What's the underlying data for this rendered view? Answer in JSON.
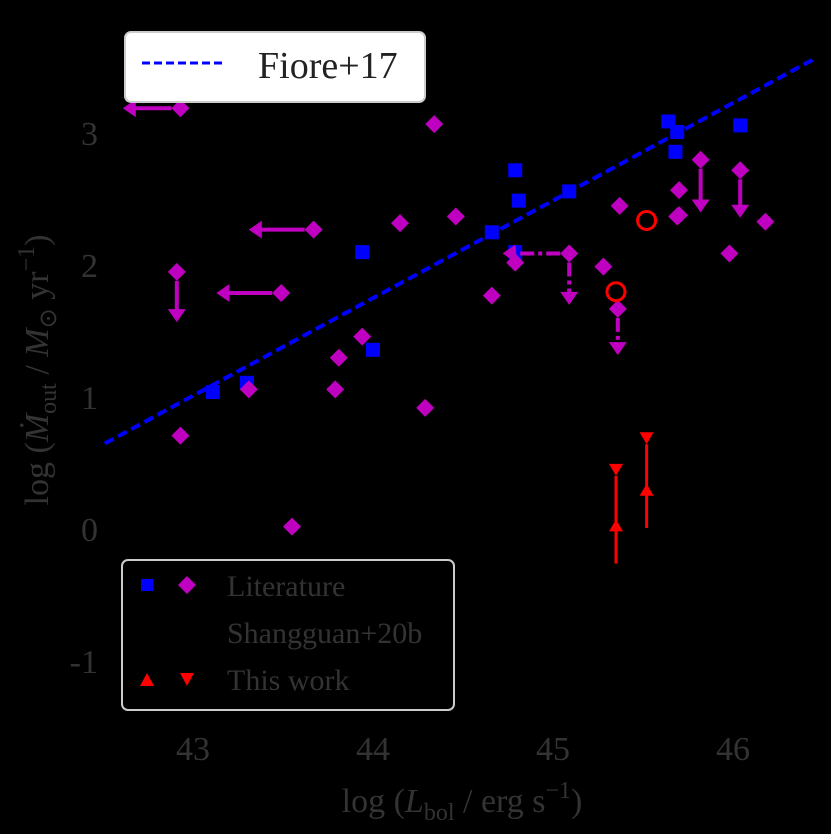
{
  "chart_data": {
    "type": "scatter",
    "title": "",
    "xlabel": "log (L_bol / erg s^-1)",
    "ylabel": "log (Ṁ_out / M_⊙ yr^-1)",
    "xlim": [
      42.4,
      46.55
    ],
    "ylim": [
      -1.4,
      3.6
    ],
    "x_ticks": [
      43,
      44,
      45,
      46
    ],
    "y_ticks": [
      -1,
      0,
      1,
      2,
      3
    ],
    "y_tick_labels": [
      "-1",
      "0",
      "1",
      "2",
      "3"
    ],
    "grid": false,
    "legends": [
      {
        "position": "upper left",
        "entries": [
          "Fiore+17"
        ]
      },
      {
        "position": "lower left",
        "entries": [
          "Literature",
          "Shangguan+20b",
          "This work"
        ]
      }
    ],
    "series": [
      {
        "name": "Fiore+17",
        "kind": "line",
        "style": "dashed",
        "color": "#0000ff",
        "points": [
          [
            42.51,
            0.64
          ],
          [
            46.46,
            3.56
          ]
        ]
      },
      {
        "name": "Literature (squares)",
        "kind": "scatter",
        "marker": "square",
        "color": "#0000ff",
        "points": [
          [
            43.11,
            1.03
          ],
          [
            43.3,
            1.1
          ],
          [
            43.94,
            2.09
          ],
          [
            44.0,
            1.35
          ],
          [
            44.66,
            2.24
          ],
          [
            44.79,
            2.71
          ],
          [
            44.81,
            2.48
          ],
          [
            44.79,
            2.09
          ],
          [
            45.09,
            2.55
          ],
          [
            45.64,
            3.08
          ],
          [
            45.69,
            3.0
          ],
          [
            45.68,
            2.85
          ],
          [
            46.04,
            3.05
          ]
        ]
      },
      {
        "name": "Literature (diamonds)",
        "kind": "scatter",
        "marker": "diamond",
        "color": "#c000c0",
        "points": [
          {
            "x": 42.93,
            "y": 3.18,
            "limit": "upper_x",
            "arrow_to_x": 42.61
          },
          {
            "x": 43.67,
            "y": 2.26,
            "limit": "upper_x",
            "arrow_to_x": 43.31
          },
          {
            "x": 43.49,
            "y": 1.78,
            "limit": "upper_x",
            "arrow_to_x": 43.13
          },
          {
            "x": 42.91,
            "y": 1.94,
            "limit": "upper_y",
            "arrow_to_y": 1.56
          },
          {
            "x": 42.93,
            "y": 0.7
          },
          {
            "x": 43.31,
            "y": 1.05
          },
          {
            "x": 43.79,
            "y": 1.05
          },
          {
            "x": 43.81,
            "y": 1.29
          },
          {
            "x": 43.94,
            "y": 1.45
          },
          {
            "x": 43.55,
            "y": 0.01
          },
          {
            "x": 44.15,
            "y": 2.31
          },
          {
            "x": 44.29,
            "y": 0.91
          },
          {
            "x": 44.34,
            "y": 3.06
          },
          {
            "x": 44.46,
            "y": 2.36
          },
          {
            "x": 44.79,
            "y": 2.01
          },
          {
            "x": 44.66,
            "y": 1.76
          },
          {
            "x": 45.09,
            "y": 2.08,
            "limit": "upper_xy_dashed",
            "arrow_to_x": 44.72,
            "arrow_to_y": 1.69
          },
          {
            "x": 45.28,
            "y": 1.98
          },
          {
            "x": 45.37,
            "y": 2.44
          },
          {
            "x": 45.36,
            "y": 1.66,
            "limit": "upper_y_dashed",
            "arrow_to_y": 1.31
          },
          {
            "x": 45.7,
            "y": 2.56
          },
          {
            "x": 45.7,
            "y": 2.37
          },
          {
            "x": 45.69,
            "y": 2.36
          },
          {
            "x": 45.82,
            "y": 2.79,
            "limit": "upper_y",
            "arrow_to_y": 2.39
          },
          {
            "x": 46.04,
            "y": 2.71,
            "limit": "upper_y",
            "arrow_to_y": 2.35
          },
          {
            "x": 46.18,
            "y": 2.32
          },
          {
            "x": 45.98,
            "y": 2.08
          }
        ]
      },
      {
        "name": "Shangguan+20b",
        "kind": "scatter",
        "marker": "open circle",
        "color": "#ff0000",
        "points": [
          [
            45.52,
            2.33
          ],
          [
            45.35,
            1.79
          ]
        ]
      },
      {
        "name": "This work",
        "kind": "range",
        "color": "#ff0000",
        "markers": [
          "triangle-up (lower limit)",
          "triangle-down (upper limit)"
        ],
        "points": [
          {
            "x": 45.35,
            "lower": 0.02,
            "upper": 0.44,
            "line_bottom": -0.27
          },
          {
            "x": 45.52,
            "lower": 0.29,
            "upper": 0.68,
            "line_bottom": 0.0
          }
        ]
      }
    ]
  },
  "legend_top": {
    "label": "Fiore+17"
  },
  "legend_bottom": {
    "literature": "Literature",
    "shangguan": "Shangguan+20b",
    "this_work": "This work"
  },
  "axes": {
    "x_ticks": [
      "43",
      "44",
      "45",
      "46"
    ],
    "y_ticks": [
      "3",
      "2",
      "1",
      "0",
      "-1"
    ]
  }
}
